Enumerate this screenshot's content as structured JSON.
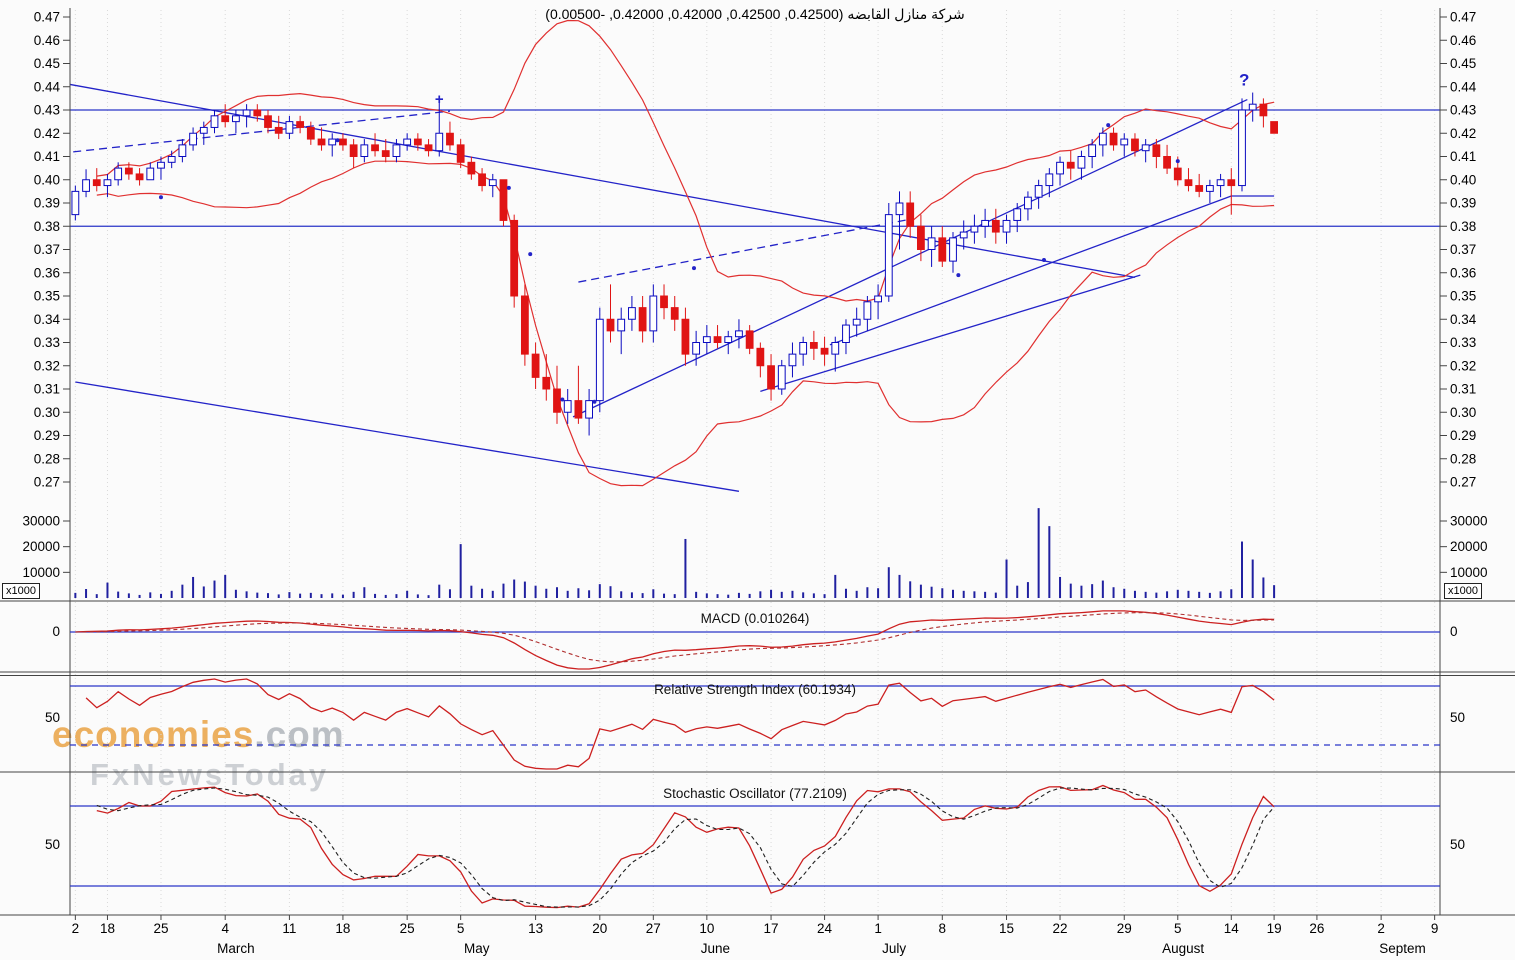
{
  "title": "شركة منازل القابضه (0.42500, 0.42500, 0.42000, 0.42000, -0.00500)",
  "watermark": {
    "line1_accent": "economies",
    "line1_rest": ".com",
    "line2": "FxNewsToday"
  },
  "chart_data": {
    "type": "candlestick",
    "instrument_name_ar": "شركة منازل القابضه",
    "ohlc_display": {
      "open": "0.42500",
      "high": "0.42500",
      "low": "0.42000",
      "close": "0.42000",
      "change": "-0.00500"
    },
    "price_axis": {
      "min": 0.27,
      "max": 0.47,
      "step": 0.01
    },
    "total_slots": 128,
    "support_resistance": [
      0.43,
      0.38
    ],
    "volume_axis": {
      "ticks": [
        30000,
        20000,
        10000
      ],
      "unit_label": "x1000"
    },
    "panels": {
      "macd": {
        "title": "MACD (0.010264)",
        "zero_label": "0",
        "lines": [
          0
        ]
      },
      "rsi": {
        "title": "Relative Strength Index (60.1934)",
        "mid_label": "50",
        "lines": [
          70,
          30
        ]
      },
      "stoch": {
        "title": "Stochastic Oscillator (77.2109)",
        "mid_label": "50",
        "lines": [
          80,
          20
        ]
      }
    },
    "x_ticks": [
      {
        "i": 0,
        "label": "2"
      },
      {
        "i": 3,
        "label": "18"
      },
      {
        "i": 8,
        "label": "25"
      },
      {
        "i": 14,
        "label": "4"
      },
      {
        "i": 20,
        "label": "11"
      },
      {
        "i": 25,
        "label": "18"
      },
      {
        "i": 31,
        "label": "25"
      },
      {
        "i": 36,
        "label": "5"
      },
      {
        "i": 43,
        "label": "13"
      },
      {
        "i": 49,
        "label": "20"
      },
      {
        "i": 54,
        "label": "27"
      },
      {
        "i": 59,
        "label": "10"
      },
      {
        "i": 65,
        "label": "17"
      },
      {
        "i": 70,
        "label": "24"
      },
      {
        "i": 75,
        "label": "1"
      },
      {
        "i": 81,
        "label": "8"
      },
      {
        "i": 87,
        "label": "15"
      },
      {
        "i": 92,
        "label": "22"
      },
      {
        "i": 98,
        "label": "29"
      },
      {
        "i": 103,
        "label": "5"
      },
      {
        "i": 108,
        "label": "14"
      },
      {
        "i": 112,
        "label": "19"
      },
      {
        "i": 116,
        "label": "26"
      },
      {
        "i": 122,
        "label": "2"
      },
      {
        "i": 127,
        "label": "9"
      }
    ],
    "months": [
      {
        "i": 15,
        "label": "March"
      },
      {
        "i": 37.5,
        "label": "May"
      },
      {
        "i": 59.8,
        "label": "June"
      },
      {
        "i": 76.5,
        "label": "July"
      },
      {
        "i": 103.5,
        "label": "August"
      },
      {
        "i": 124,
        "label": "Septem"
      }
    ],
    "trendlines": [
      {
        "i1": -0.5,
        "p1": 0.441,
        "i2": 99,
        "p2": 0.358,
        "dashed": false
      },
      {
        "i1": -0.2,
        "p1": 0.412,
        "i2": 35,
        "p2": 0.4295,
        "dashed": true
      },
      {
        "i1": 47,
        "p1": 0.356,
        "i2": 78,
        "p2": 0.383,
        "dashed": true
      },
      {
        "i1": 0,
        "p1": 0.313,
        "i2": 62,
        "p2": 0.266,
        "dashed": false
      },
      {
        "i1": 46.5,
        "p1": 0.298,
        "i2": 109.5,
        "p2": 0.4345,
        "dashed": false
      },
      {
        "i1": 64,
        "p1": 0.309,
        "i2": 99.5,
        "p2": 0.359,
        "dashed": false
      },
      {
        "i1": 70.5,
        "p1": 0.329,
        "i2": 108,
        "p2": 0.393,
        "dashed": false
      },
      {
        "i1": 108,
        "p1": 0.393,
        "i2": 112,
        "p2": 0.393,
        "dashed": false
      }
    ],
    "dots": [
      [
        8,
        0.3925
      ],
      [
        24.5,
        0.417
      ],
      [
        40.5,
        0.3965
      ],
      [
        42.5,
        0.368
      ],
      [
        45.5,
        0.3055
      ],
      [
        48.5,
        0.3045
      ],
      [
        57.8,
        0.362
      ],
      [
        82.5,
        0.359
      ],
      [
        90.5,
        0.3655
      ],
      [
        96.5,
        0.4235
      ],
      [
        103,
        0.408
      ]
    ],
    "annotations": [
      {
        "i": 109.2,
        "p": 0.4405,
        "text": "?",
        "size": 17
      },
      {
        "i": 34,
        "p": 0.4325,
        "text": "+",
        "size": 15
      }
    ],
    "candles": [
      [
        0.385,
        0.3975,
        0.3825,
        0.395,
        2000
      ],
      [
        0.395,
        0.4045,
        0.3925,
        0.4,
        3500
      ],
      [
        0.4,
        0.405,
        0.395,
        0.3975,
        1500
      ],
      [
        0.3975,
        0.4025,
        0.3925,
        0.4,
        6000
      ],
      [
        0.4,
        0.4075,
        0.3975,
        0.405,
        2500
      ],
      [
        0.405,
        0.4075,
        0.4,
        0.4025,
        1800
      ],
      [
        0.4025,
        0.405,
        0.3975,
        0.4,
        1200
      ],
      [
        0.4,
        0.4075,
        0.4,
        0.405,
        2200
      ],
      [
        0.405,
        0.41,
        0.4,
        0.4075,
        1600
      ],
      [
        0.4075,
        0.4125,
        0.405,
        0.41,
        2800
      ],
      [
        0.41,
        0.4175,
        0.4075,
        0.415,
        5200
      ],
      [
        0.415,
        0.4225,
        0.4125,
        0.42,
        8200
      ],
      [
        0.42,
        0.425,
        0.415,
        0.4225,
        4500
      ],
      [
        0.4225,
        0.43,
        0.42,
        0.4275,
        6800
      ],
      [
        0.4275,
        0.4325,
        0.4225,
        0.425,
        9000
      ],
      [
        0.425,
        0.43,
        0.42,
        0.4275,
        3200
      ],
      [
        0.4275,
        0.4325,
        0.4225,
        0.43,
        2600
      ],
      [
        0.43,
        0.4325,
        0.425,
        0.4275,
        2100
      ],
      [
        0.4275,
        0.43,
        0.42,
        0.4225,
        1900
      ],
      [
        0.4225,
        0.4275,
        0.4175,
        0.42,
        1400
      ],
      [
        0.42,
        0.4275,
        0.4175,
        0.425,
        2300
      ],
      [
        0.425,
        0.4275,
        0.42,
        0.4225,
        1700
      ],
      [
        0.4225,
        0.425,
        0.415,
        0.4175,
        2000
      ],
      [
        0.4175,
        0.4225,
        0.4125,
        0.415,
        1500
      ],
      [
        0.415,
        0.42,
        0.41,
        0.4175,
        1800
      ],
      [
        0.4175,
        0.42,
        0.4125,
        0.415,
        1300
      ],
      [
        0.415,
        0.4175,
        0.405,
        0.41,
        2400
      ],
      [
        0.41,
        0.4175,
        0.4075,
        0.415,
        4200
      ],
      [
        0.415,
        0.42,
        0.41,
        0.4125,
        1600
      ],
      [
        0.4125,
        0.4175,
        0.4075,
        0.41,
        1200
      ],
      [
        0.41,
        0.4175,
        0.4075,
        0.415,
        1500
      ],
      [
        0.415,
        0.42,
        0.4125,
        0.4175,
        2800
      ],
      [
        0.4175,
        0.42,
        0.4125,
        0.415,
        1400
      ],
      [
        0.415,
        0.4175,
        0.41,
        0.4125,
        1100
      ],
      [
        0.4125,
        0.435,
        0.41,
        0.42,
        5200
      ],
      [
        0.42,
        0.425,
        0.4125,
        0.415,
        3400
      ],
      [
        0.415,
        0.4175,
        0.405,
        0.4075,
        21000
      ],
      [
        0.4075,
        0.41,
        0.4,
        0.4025,
        4800
      ],
      [
        0.4025,
        0.405,
        0.395,
        0.3975,
        3600
      ],
      [
        0.3975,
        0.4025,
        0.3925,
        0.4,
        2800
      ],
      [
        0.4,
        0.4,
        0.38,
        0.3825,
        5600
      ],
      [
        0.3825,
        0.385,
        0.345,
        0.35,
        7200
      ],
      [
        0.35,
        0.355,
        0.32,
        0.325,
        6400
      ],
      [
        0.325,
        0.33,
        0.31,
        0.315,
        4800
      ],
      [
        0.315,
        0.325,
        0.305,
        0.31,
        3600
      ],
      [
        0.31,
        0.32,
        0.295,
        0.3,
        4200
      ],
      [
        0.3,
        0.31,
        0.295,
        0.305,
        2800
      ],
      [
        0.305,
        0.32,
        0.295,
        0.2975,
        3800
      ],
      [
        0.2975,
        0.31,
        0.29,
        0.305,
        3000
      ],
      [
        0.305,
        0.345,
        0.3,
        0.34,
        5400
      ],
      [
        0.34,
        0.355,
        0.33,
        0.335,
        4600
      ],
      [
        0.335,
        0.345,
        0.325,
        0.34,
        2600
      ],
      [
        0.34,
        0.35,
        0.335,
        0.345,
        2200
      ],
      [
        0.345,
        0.35,
        0.33,
        0.335,
        1900
      ],
      [
        0.335,
        0.355,
        0.33,
        0.35,
        3400
      ],
      [
        0.35,
        0.355,
        0.34,
        0.345,
        1700
      ],
      [
        0.345,
        0.35,
        0.335,
        0.34,
        1500
      ],
      [
        0.34,
        0.345,
        0.32,
        0.325,
        23000
      ],
      [
        0.325,
        0.335,
        0.32,
        0.33,
        2400
      ],
      [
        0.33,
        0.3375,
        0.325,
        0.3325,
        1800
      ],
      [
        0.3325,
        0.3375,
        0.3275,
        0.33,
        1500
      ],
      [
        0.33,
        0.335,
        0.325,
        0.3325,
        1300
      ],
      [
        0.3325,
        0.34,
        0.3275,
        0.335,
        2000
      ],
      [
        0.335,
        0.3375,
        0.325,
        0.3275,
        1600
      ],
      [
        0.3275,
        0.33,
        0.315,
        0.32,
        2600
      ],
      [
        0.32,
        0.325,
        0.305,
        0.31,
        3200
      ],
      [
        0.31,
        0.3225,
        0.3075,
        0.32,
        2400
      ],
      [
        0.32,
        0.33,
        0.315,
        0.325,
        2800
      ],
      [
        0.325,
        0.3325,
        0.32,
        0.33,
        2200
      ],
      [
        0.33,
        0.335,
        0.3225,
        0.3275,
        1800
      ],
      [
        0.3275,
        0.3325,
        0.32,
        0.325,
        1500
      ],
      [
        0.325,
        0.3325,
        0.3175,
        0.33,
        9000
      ],
      [
        0.33,
        0.34,
        0.325,
        0.3375,
        3600
      ],
      [
        0.3375,
        0.345,
        0.3325,
        0.34,
        2800
      ],
      [
        0.34,
        0.35,
        0.335,
        0.3475,
        4200
      ],
      [
        0.3475,
        0.355,
        0.34,
        0.35,
        3800
      ],
      [
        0.35,
        0.39,
        0.3475,
        0.385,
        12000
      ],
      [
        0.385,
        0.395,
        0.37,
        0.39,
        9000
      ],
      [
        0.39,
        0.395,
        0.375,
        0.38,
        6500
      ],
      [
        0.38,
        0.385,
        0.365,
        0.37,
        5200
      ],
      [
        0.37,
        0.38,
        0.3625,
        0.375,
        4400
      ],
      [
        0.375,
        0.38,
        0.3625,
        0.365,
        3800
      ],
      [
        0.365,
        0.3775,
        0.36,
        0.375,
        3200
      ],
      [
        0.375,
        0.3825,
        0.37,
        0.3775,
        2800
      ],
      [
        0.3775,
        0.385,
        0.3725,
        0.38,
        2600
      ],
      [
        0.38,
        0.3875,
        0.375,
        0.3825,
        2400
      ],
      [
        0.3825,
        0.3875,
        0.3725,
        0.3775,
        2100
      ],
      [
        0.3775,
        0.385,
        0.3725,
        0.3825,
        15000
      ],
      [
        0.3825,
        0.39,
        0.3775,
        0.3875,
        4800
      ],
      [
        0.3875,
        0.395,
        0.3825,
        0.3925,
        6200
      ],
      [
        0.3925,
        0.4,
        0.3875,
        0.3975,
        35000
      ],
      [
        0.3975,
        0.405,
        0.3925,
        0.4025,
        28000
      ],
      [
        0.4025,
        0.41,
        0.3975,
        0.4075,
        8200
      ],
      [
        0.4075,
        0.4125,
        0.4,
        0.405,
        5600
      ],
      [
        0.405,
        0.4125,
        0.4,
        0.41,
        4800
      ],
      [
        0.41,
        0.4175,
        0.405,
        0.415,
        5400
      ],
      [
        0.415,
        0.4225,
        0.41,
        0.42,
        6800
      ],
      [
        0.42,
        0.4225,
        0.4125,
        0.415,
        4200
      ],
      [
        0.415,
        0.42,
        0.41,
        0.4175,
        3600
      ],
      [
        0.4175,
        0.42,
        0.41,
        0.4125,
        2800
      ],
      [
        0.4125,
        0.4175,
        0.4075,
        0.415,
        2400
      ],
      [
        0.415,
        0.4175,
        0.405,
        0.41,
        2100
      ],
      [
        0.41,
        0.415,
        0.4025,
        0.405,
        2600
      ],
      [
        0.405,
        0.41,
        0.3975,
        0.4,
        3200
      ],
      [
        0.4,
        0.405,
        0.395,
        0.3975,
        2800
      ],
      [
        0.3975,
        0.4025,
        0.3925,
        0.395,
        2400
      ],
      [
        0.395,
        0.4,
        0.39,
        0.3975,
        2000
      ],
      [
        0.3975,
        0.4025,
        0.3925,
        0.4,
        2600
      ],
      [
        0.4,
        0.405,
        0.385,
        0.3975,
        3400
      ],
      [
        0.3975,
        0.435,
        0.395,
        0.43,
        22000
      ],
      [
        0.43,
        0.4375,
        0.425,
        0.4325,
        15000
      ],
      [
        0.4325,
        0.435,
        0.4225,
        0.4275,
        8000
      ],
      [
        0.425,
        0.425,
        0.42,
        0.42,
        5000
      ]
    ],
    "colors": {
      "candle_up": "#0a0ac0",
      "candle_down": "#e01414",
      "bollinger": "#e03030",
      "trend": "#2323c8",
      "level": "#2a35c8",
      "volume": "#2020a0",
      "macd": "#cc2020",
      "macd_signal": "#b03030",
      "rsi": "#cc2020",
      "stoch_k": "#cc2020",
      "stoch_d": "#202020",
      "grid": "#d9d9d9",
      "separator": "#444444",
      "text": "#000000"
    }
  }
}
